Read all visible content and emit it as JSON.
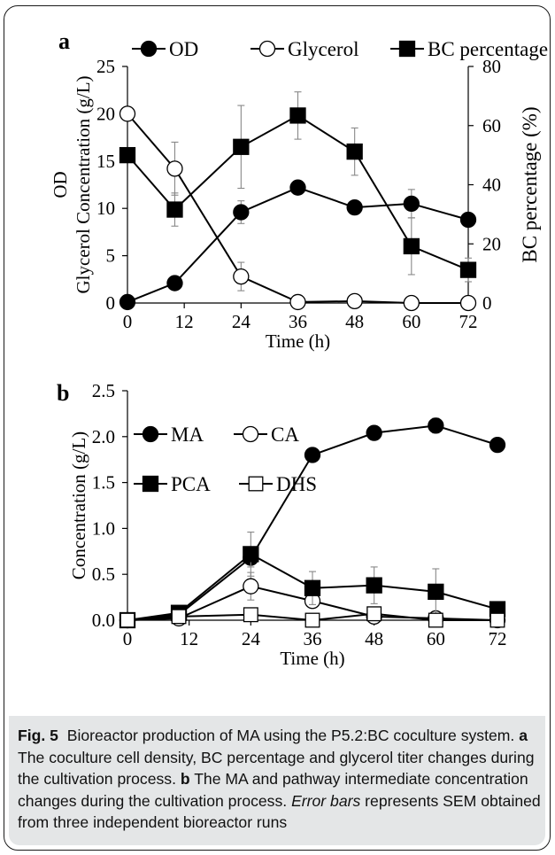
{
  "chart_data": [
    {
      "panel_label": "a",
      "type": "line",
      "x": [
        0,
        10,
        24,
        36,
        48,
        60,
        72
      ],
      "xticks": [
        0,
        12,
        24,
        36,
        48,
        60,
        72
      ],
      "xlabel": "Time (h)",
      "ylabel_lines": [
        "OD",
        "Glycerol Concentration (g/L)"
      ],
      "ylim": [
        0,
        25
      ],
      "yticks": [
        0,
        5,
        10,
        15,
        20,
        25
      ],
      "y2label": "BC percentage (%)",
      "y2lim": [
        0,
        80
      ],
      "y2ticks": [
        0,
        20,
        40,
        60,
        80
      ],
      "legend_position": "top",
      "series": [
        {
          "name": "OD",
          "marker": "filled-circle",
          "axis": "left",
          "values": [
            0.1,
            2.1,
            9.6,
            12.2,
            10.1,
            10.5,
            8.8
          ],
          "errors": [
            0,
            0,
            1.2,
            0,
            0,
            1.5,
            0
          ]
        },
        {
          "name": "Glycerol",
          "marker": "open-circle",
          "axis": "left",
          "values": [
            20.0,
            14.2,
            2.8,
            0.1,
            0.2,
            0.0,
            0.0
          ],
          "errors": [
            0,
            2.8,
            1.5,
            0,
            0,
            0,
            0
          ]
        },
        {
          "name": "BC percentage",
          "marker": "filled-square",
          "axis": "right",
          "values": [
            50,
            31.6,
            52.8,
            63.4,
            51.2,
            19.2,
            11.2
          ],
          "errors": [
            0,
            5.6,
            14,
            8,
            8,
            9.6,
            4
          ]
        }
      ]
    },
    {
      "panel_label": "b",
      "type": "line",
      "x": [
        0,
        10,
        24,
        36,
        48,
        60,
        72
      ],
      "xticks": [
        0,
        12,
        24,
        36,
        48,
        60,
        72
      ],
      "xlabel": "Time (h)",
      "ylabel": "Concentration (g/L)",
      "ylim": [
        0,
        2.5
      ],
      "yticks": [
        "0.0",
        "0.5",
        "1.0",
        "1.5",
        "2.0",
        "2.5"
      ],
      "legend_position": "top-left",
      "series": [
        {
          "name": "MA",
          "marker": "filled-circle",
          "values": [
            0.0,
            0.06,
            0.68,
            1.8,
            2.04,
            2.12,
            1.91
          ],
          "errors": [
            0,
            0,
            0.1,
            0,
            0.05,
            0.08,
            0.05
          ]
        },
        {
          "name": "CA",
          "marker": "open-circle",
          "values": [
            0.0,
            0.02,
            0.37,
            0.21,
            0.04,
            0.02,
            0.0
          ],
          "errors": [
            0,
            0,
            0.15,
            0,
            0,
            0,
            0
          ]
        },
        {
          "name": "PCA",
          "marker": "filled-square",
          "values": [
            0.0,
            0.08,
            0.72,
            0.35,
            0.38,
            0.31,
            0.12
          ],
          "errors": [
            0,
            0,
            0.24,
            0.18,
            0.2,
            0.25,
            0.06
          ]
        },
        {
          "name": "DHS",
          "marker": "open-square",
          "values": [
            0.0,
            0.04,
            0.06,
            0.0,
            0.07,
            0.0,
            0.0
          ],
          "errors": [
            0,
            0,
            0,
            0,
            0,
            0,
            0
          ]
        }
      ]
    }
  ],
  "caption": {
    "label": "Fig. 5",
    "intro": "Bioreactor production of MA using the P5.2:BC coculture system.",
    "part_a_label": "a",
    "part_a_text": "The coculture cell density, BC percentage and glycerol titer changes during the cultivation process.",
    "part_b_label": "b",
    "part_b_text": "The MA and pathway intermediate concentration changes during the cultivation process.",
    "errorbars_italic": "Error bars",
    "errorbars_text": "represents SEM obtained from three independent bioreactor runs"
  }
}
